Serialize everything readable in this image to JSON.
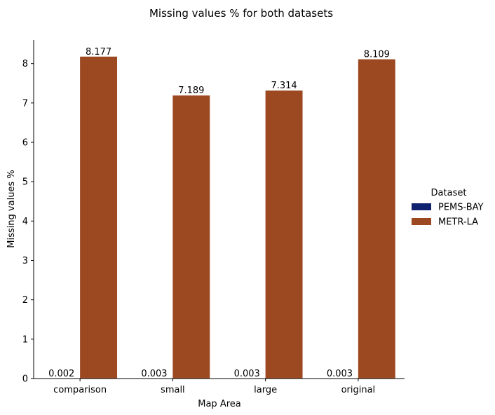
{
  "chart_data": {
    "type": "bar",
    "title": "Missing values % for both datasets",
    "xlabel": "Map Area",
    "ylabel": "Missing values %",
    "categories": [
      "comparison",
      "small",
      "large",
      "original"
    ],
    "series": [
      {
        "name": "PEMS-BAY",
        "values": [
          0.002,
          0.003,
          0.003,
          0.003
        ],
        "labels": [
          "0.002",
          "0.003",
          "0.003",
          "0.003"
        ],
        "color": "#0f2270"
      },
      {
        "name": "METR-LA",
        "values": [
          8.177,
          7.189,
          7.314,
          8.109
        ],
        "labels": [
          "8.177",
          "7.189",
          "7.314",
          "8.109"
        ],
        "color": "#9c4821"
      }
    ],
    "ylim": [
      0,
      8.6
    ],
    "yticks": [
      "0",
      "1",
      "2",
      "3",
      "4",
      "5",
      "6",
      "7",
      "8"
    ],
    "grid": false,
    "legend": {
      "title": "Dataset",
      "placement": "right"
    }
  }
}
